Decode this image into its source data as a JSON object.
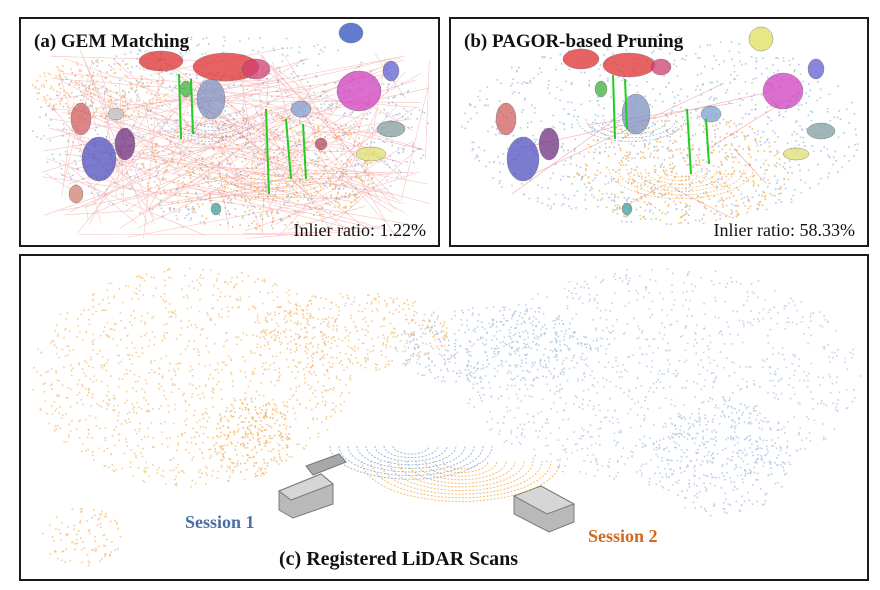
{
  "panels": {
    "a": {
      "title": "(a) GEM Matching",
      "inlier_label": "Inlier ratio: 1.22%",
      "inlier_ratio_percent": 1.22
    },
    "b": {
      "title": "(b) PAGOR-based Pruning",
      "inlier_label": "Inlier ratio: 58.33%",
      "inlier_ratio_percent": 58.33
    },
    "c": {
      "caption": "(c) Registered LiDAR Scans",
      "session1_label": "Session 1",
      "session2_label": "Session 2"
    }
  },
  "colors": {
    "session1": "#7aa0d0",
    "session1_label": "#4a6fa5",
    "session2": "#f2a640",
    "session2_label": "#d2691e",
    "outlier_lines": "#e85050",
    "inlier_lines": "#22cc22",
    "border": "#1a1a1a"
  }
}
